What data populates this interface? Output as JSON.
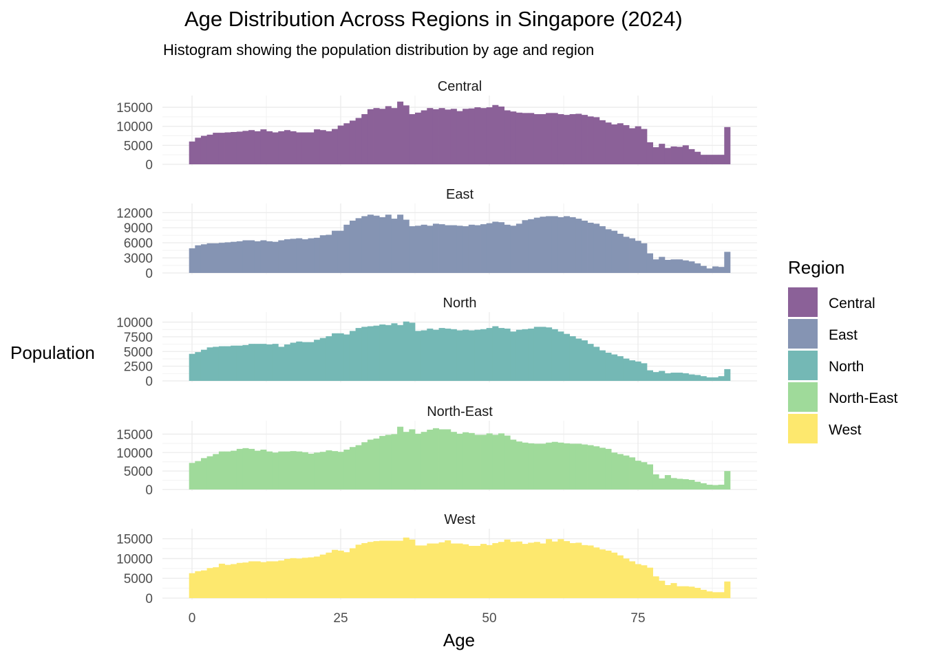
{
  "title": "Age Distribution Across Regions in Singapore (2024)",
  "subtitle": "Histogram showing the population distribution by age and region",
  "chart_data": {
    "type": "bar",
    "subtype": "faceted histogram",
    "xlabel": "Age",
    "ylabel": "Population",
    "x_ticks": [
      0,
      25,
      50,
      75
    ],
    "xlim": [
      -4,
      95
    ],
    "bin_width": 1,
    "ages_note_first_bin": 0,
    "grid": true,
    "legend": {
      "title": "Region",
      "position": "right"
    },
    "facets": [
      {
        "name": "Central",
        "color": "#8B6198",
        "ylim": [
          0,
          17000
        ],
        "y_ticks": [
          0,
          5000,
          10000,
          15000
        ],
        "values": [
          6000,
          7000,
          7500,
          7800,
          8300,
          8300,
          8400,
          8500,
          8600,
          8800,
          9000,
          8700,
          9200,
          8700,
          8400,
          8700,
          9000,
          8700,
          8400,
          8400,
          8400,
          9200,
          9000,
          8700,
          9300,
          10200,
          10800,
          11500,
          12200,
          13200,
          14500,
          14800,
          14600,
          15300,
          14800,
          16500,
          15500,
          13200,
          13600,
          14200,
          14800,
          14500,
          14800,
          14400,
          14600,
          14000,
          14600,
          14700,
          15000,
          14800,
          15000,
          15600,
          15200,
          14200,
          13900,
          13600,
          13500,
          13500,
          13200,
          13200,
          13500,
          13500,
          13200,
          13000,
          13200,
          13300,
          13000,
          12600,
          12400,
          11600,
          11000,
          10500,
          10800,
          10300,
          9500,
          10000,
          9300,
          5800,
          4500,
          5400,
          4300,
          4700,
          4600,
          5000,
          4000,
          3300,
          2500,
          2500,
          2500,
          2500,
          9800
        ]
      },
      {
        "name": "East",
        "color": "#8594B3",
        "ylim": [
          0,
          13000
        ],
        "y_ticks": [
          0,
          3000,
          6000,
          9000,
          12000
        ],
        "values": [
          4900,
          5500,
          5700,
          5900,
          5900,
          6000,
          6100,
          6200,
          6300,
          6500,
          6500,
          6300,
          6500,
          6300,
          6200,
          6500,
          6700,
          6800,
          6900,
          6700,
          6900,
          7000,
          7500,
          7600,
          8400,
          8400,
          9600,
          10400,
          10900,
          11300,
          11600,
          11400,
          11100,
          11600,
          10800,
          11600,
          10600,
          9300,
          9400,
          9600,
          9400,
          9800,
          9700,
          9500,
          9500,
          9400,
          9300,
          9600,
          9500,
          9700,
          9900,
          10200,
          10100,
          9600,
          9400,
          9800,
          10500,
          10700,
          11000,
          11200,
          11300,
          11300,
          11100,
          11300,
          11100,
          10800,
          10400,
          10000,
          9800,
          9300,
          8700,
          8400,
          7800,
          7200,
          6900,
          6400,
          5900,
          3900,
          2700,
          3200,
          2600,
          2700,
          2700,
          2500,
          2300,
          1900,
          1400,
          900,
          1300,
          1200,
          4200
        ]
      },
      {
        "name": "North",
        "color": "#74B8B5",
        "ylim": [
          0,
          11000
        ],
        "y_ticks": [
          0,
          2500,
          5000,
          7500,
          10000
        ],
        "values": [
          4600,
          4900,
          5300,
          5700,
          5800,
          5900,
          5900,
          6000,
          6000,
          6100,
          6300,
          6300,
          6300,
          6200,
          6300,
          5800,
          6200,
          6500,
          6700,
          6600,
          6600,
          7000,
          7300,
          7600,
          8100,
          8100,
          7900,
          8500,
          9000,
          9200,
          9300,
          9400,
          9600,
          9500,
          9800,
          9500,
          10100,
          9900,
          8500,
          8600,
          8900,
          8700,
          9000,
          8900,
          8800,
          8600,
          8700,
          8600,
          8700,
          8800,
          9000,
          9300,
          9000,
          8900,
          8400,
          8700,
          8800,
          8900,
          9200,
          9200,
          9100,
          8800,
          8400,
          8000,
          7600,
          7200,
          6900,
          6300,
          5800,
          5200,
          4800,
          4500,
          4200,
          3800,
          3500,
          3300,
          3000,
          1800,
          1500,
          1700,
          1300,
          1400,
          1400,
          1300,
          1100,
          1000,
          800,
          600,
          600,
          800,
          2000
        ]
      },
      {
        "name": "North-East",
        "color": "#9FDA9A",
        "ylim": [
          0,
          17500
        ],
        "y_ticks": [
          0,
          5000,
          10000,
          15000
        ],
        "values": [
          7200,
          7700,
          8500,
          9000,
          9600,
          10300,
          10300,
          10500,
          11000,
          11200,
          11000,
          10500,
          10800,
          10300,
          10000,
          10300,
          10300,
          10400,
          10300,
          10100,
          9700,
          10000,
          10200,
          10600,
          10400,
          10200,
          10800,
          11500,
          12000,
          12800,
          13500,
          13800,
          14500,
          14800,
          15000,
          17000,
          15600,
          16300,
          15100,
          15600,
          16200,
          16600,
          16300,
          16300,
          15600,
          15100,
          15500,
          15300,
          14800,
          14800,
          15200,
          14800,
          15200,
          14600,
          13500,
          13000,
          12700,
          12500,
          12400,
          12400,
          12700,
          12900,
          12700,
          12500,
          12400,
          12400,
          12200,
          12000,
          11700,
          11300,
          11000,
          10000,
          9600,
          9200,
          8700,
          7800,
          7400,
          6800,
          4100,
          3000,
          3900,
          3100,
          2900,
          2800,
          2600,
          2100,
          1700,
          1300,
          1200,
          1300,
          5000
        ]
      },
      {
        "name": "West",
        "color": "#FDE86E",
        "ylim": [
          0,
          16500
        ],
        "y_ticks": [
          0,
          5000,
          10000,
          15000
        ],
        "values": [
          6300,
          6800,
          7000,
          7600,
          7800,
          8700,
          8400,
          8600,
          8900,
          9000,
          9300,
          9300,
          9100,
          9300,
          9300,
          9500,
          9900,
          10100,
          10000,
          10200,
          10300,
          10500,
          11000,
          11500,
          12200,
          12000,
          11600,
          12600,
          13500,
          13900,
          14200,
          14400,
          14500,
          14500,
          14500,
          14500,
          15300,
          14800,
          13300,
          13300,
          13800,
          13800,
          14100,
          14600,
          13800,
          13800,
          13600,
          13200,
          13200,
          13700,
          13400,
          13900,
          14200,
          14800,
          14200,
          14300,
          13700,
          14000,
          14200,
          13800,
          14900,
          14300,
          14900,
          14400,
          13900,
          14000,
          13400,
          13300,
          12800,
          12300,
          12000,
          11500,
          10800,
          10000,
          9300,
          8600,
          8300,
          7700,
          5500,
          4400,
          3300,
          3800,
          3000,
          3000,
          2900,
          2600,
          2100,
          1700,
          1500,
          1500,
          4200
        ]
      }
    ]
  }
}
